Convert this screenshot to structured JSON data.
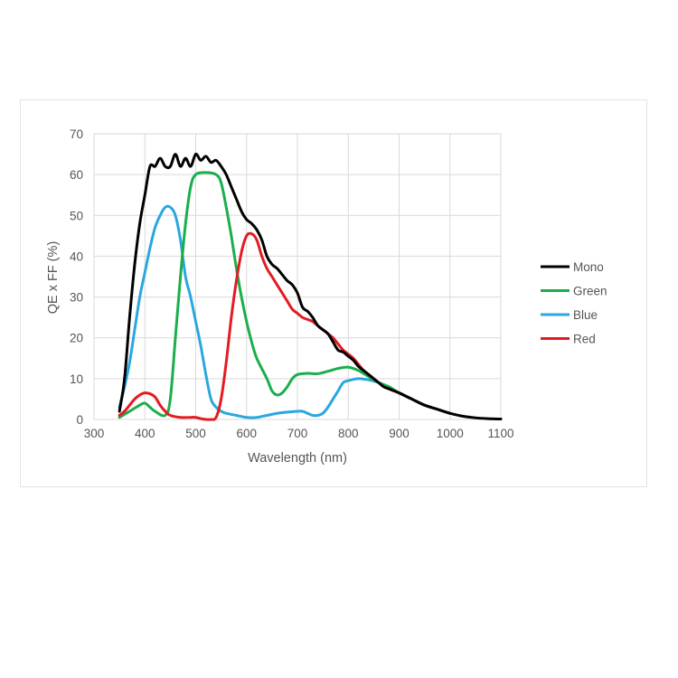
{
  "chart_data": {
    "type": "line",
    "title": "",
    "xlabel": "Wavelength (nm)",
    "ylabel": "QE x FF (%)",
    "xlim": [
      300,
      1100
    ],
    "ylim": [
      0,
      70
    ],
    "x_ticks": [
      "300",
      "400",
      "500",
      "600",
      "700",
      "800",
      "900",
      "1000",
      "1100"
    ],
    "y_ticks": [
      "0",
      "10",
      "20",
      "30",
      "40",
      "50",
      "60",
      "70"
    ],
    "grid": true,
    "legend_position": "right",
    "series": [
      {
        "name": "Mono",
        "color": "#000000",
        "points": [
          [
            350,
            2
          ],
          [
            360,
            10
          ],
          [
            370,
            25
          ],
          [
            380,
            38
          ],
          [
            390,
            48
          ],
          [
            400,
            55
          ],
          [
            410,
            62
          ],
          [
            420,
            62
          ],
          [
            430,
            64
          ],
          [
            440,
            62
          ],
          [
            450,
            62
          ],
          [
            460,
            65
          ],
          [
            470,
            62
          ],
          [
            480,
            64
          ],
          [
            490,
            62
          ],
          [
            500,
            65
          ],
          [
            510,
            63.5
          ],
          [
            520,
            64.5
          ],
          [
            530,
            63
          ],
          [
            540,
            63.5
          ],
          [
            550,
            62
          ],
          [
            560,
            60
          ],
          [
            570,
            57
          ],
          [
            580,
            54
          ],
          [
            590,
            51
          ],
          [
            600,
            49
          ],
          [
            610,
            48
          ],
          [
            620,
            46.5
          ],
          [
            630,
            44
          ],
          [
            640,
            40
          ],
          [
            650,
            38
          ],
          [
            660,
            37
          ],
          [
            670,
            35.5
          ],
          [
            680,
            34
          ],
          [
            690,
            33
          ],
          [
            700,
            31
          ],
          [
            710,
            27.5
          ],
          [
            720,
            26.5
          ],
          [
            730,
            25
          ],
          [
            740,
            23
          ],
          [
            750,
            22
          ],
          [
            760,
            21
          ],
          [
            770,
            19
          ],
          [
            780,
            17
          ],
          [
            790,
            16.5
          ],
          [
            800,
            15.5
          ],
          [
            810,
            14.5
          ],
          [
            820,
            13
          ],
          [
            830,
            12
          ],
          [
            840,
            11
          ],
          [
            850,
            10
          ],
          [
            860,
            9
          ],
          [
            870,
            8
          ],
          [
            880,
            7.5
          ],
          [
            890,
            7
          ],
          [
            900,
            6.5
          ],
          [
            925,
            5
          ],
          [
            950,
            3.5
          ],
          [
            975,
            2.5
          ],
          [
            1000,
            1.5
          ],
          [
            1025,
            0.8
          ],
          [
            1050,
            0.4
          ],
          [
            1075,
            0.2
          ],
          [
            1100,
            0.1
          ]
        ]
      },
      {
        "name": "Green",
        "color": "#1aae4c",
        "points": [
          [
            350,
            0.5
          ],
          [
            370,
            2
          ],
          [
            390,
            3.5
          ],
          [
            400,
            4
          ],
          [
            410,
            3
          ],
          [
            420,
            2
          ],
          [
            440,
            1
          ],
          [
            450,
            5
          ],
          [
            460,
            20
          ],
          [
            470,
            35
          ],
          [
            480,
            48
          ],
          [
            490,
            57
          ],
          [
            500,
            60
          ],
          [
            520,
            60.5
          ],
          [
            540,
            60
          ],
          [
            550,
            58
          ],
          [
            560,
            52
          ],
          [
            570,
            45
          ],
          [
            580,
            37
          ],
          [
            590,
            30
          ],
          [
            600,
            24
          ],
          [
            610,
            19
          ],
          [
            620,
            15
          ],
          [
            640,
            10
          ],
          [
            650,
            7
          ],
          [
            660,
            6
          ],
          [
            670,
            6.5
          ],
          [
            680,
            8
          ],
          [
            690,
            10
          ],
          [
            700,
            11
          ],
          [
            720,
            11.3
          ],
          [
            740,
            11.2
          ],
          [
            760,
            11.8
          ],
          [
            780,
            12.5
          ],
          [
            800,
            12.8
          ],
          [
            820,
            12
          ],
          [
            840,
            10.5
          ],
          [
            860,
            9
          ],
          [
            880,
            8
          ],
          [
            900,
            6.5
          ],
          [
            925,
            5
          ],
          [
            950,
            3.5
          ],
          [
            975,
            2.5
          ],
          [
            1000,
            1.5
          ]
        ]
      },
      {
        "name": "Blue",
        "color": "#2aa7df",
        "points": [
          [
            350,
            3
          ],
          [
            360,
            8
          ],
          [
            370,
            14
          ],
          [
            380,
            22
          ],
          [
            390,
            30
          ],
          [
            400,
            36
          ],
          [
            410,
            42
          ],
          [
            420,
            47
          ],
          [
            430,
            50
          ],
          [
            440,
            52
          ],
          [
            450,
            52
          ],
          [
            460,
            50
          ],
          [
            470,
            44
          ],
          [
            480,
            35
          ],
          [
            490,
            30
          ],
          [
            500,
            24
          ],
          [
            510,
            18
          ],
          [
            520,
            11
          ],
          [
            530,
            5
          ],
          [
            540,
            3
          ],
          [
            550,
            2
          ],
          [
            560,
            1.5
          ],
          [
            580,
            1
          ],
          [
            600,
            0.5
          ],
          [
            620,
            0.5
          ],
          [
            640,
            1
          ],
          [
            660,
            1.5
          ],
          [
            680,
            1.8
          ],
          [
            700,
            2
          ],
          [
            710,
            2
          ],
          [
            720,
            1.5
          ],
          [
            730,
            1
          ],
          [
            740,
            1
          ],
          [
            750,
            1.5
          ],
          [
            760,
            3
          ],
          [
            770,
            5
          ],
          [
            780,
            7
          ],
          [
            790,
            9
          ],
          [
            800,
            9.5
          ],
          [
            820,
            10
          ],
          [
            840,
            9.7
          ],
          [
            860,
            9
          ],
          [
            880,
            8
          ],
          [
            900,
            6.5
          ],
          [
            925,
            5
          ],
          [
            950,
            3.5
          ],
          [
            975,
            2.5
          ],
          [
            1000,
            1.5
          ]
        ]
      },
      {
        "name": "Red",
        "color": "#e31b23",
        "points": [
          [
            350,
            1
          ],
          [
            360,
            2
          ],
          [
            370,
            3.5
          ],
          [
            380,
            5
          ],
          [
            390,
            6
          ],
          [
            400,
            6.5
          ],
          [
            410,
            6.3
          ],
          [
            420,
            5.5
          ],
          [
            430,
            3.5
          ],
          [
            440,
            2
          ],
          [
            450,
            1
          ],
          [
            470,
            0.5
          ],
          [
            490,
            0.5
          ],
          [
            500,
            0.5
          ],
          [
            510,
            0.2
          ],
          [
            520,
            0
          ],
          [
            530,
            0
          ],
          [
            540,
            0.5
          ],
          [
            550,
            5
          ],
          [
            560,
            14
          ],
          [
            570,
            25
          ],
          [
            580,
            34
          ],
          [
            590,
            41
          ],
          [
            600,
            45
          ],
          [
            610,
            45.5
          ],
          [
            620,
            44
          ],
          [
            630,
            40
          ],
          [
            640,
            37
          ],
          [
            650,
            35
          ],
          [
            660,
            33
          ],
          [
            670,
            31
          ],
          [
            680,
            29
          ],
          [
            690,
            27
          ],
          [
            700,
            26
          ],
          [
            710,
            25
          ],
          [
            720,
            24.5
          ],
          [
            730,
            24
          ],
          [
            740,
            23
          ],
          [
            750,
            22
          ],
          [
            760,
            21
          ],
          [
            770,
            20
          ],
          [
            780,
            18.5
          ],
          [
            790,
            17
          ],
          [
            800,
            16
          ],
          [
            810,
            15
          ],
          [
            820,
            13.5
          ],
          [
            830,
            12
          ],
          [
            840,
            11
          ],
          [
            850,
            10
          ],
          [
            860,
            9
          ],
          [
            870,
            8
          ],
          [
            880,
            7.5
          ],
          [
            890,
            7
          ],
          [
            900,
            6.5
          ],
          [
            925,
            5
          ],
          [
            950,
            3.5
          ],
          [
            975,
            2.5
          ],
          [
            1000,
            1.5
          ]
        ]
      }
    ]
  }
}
